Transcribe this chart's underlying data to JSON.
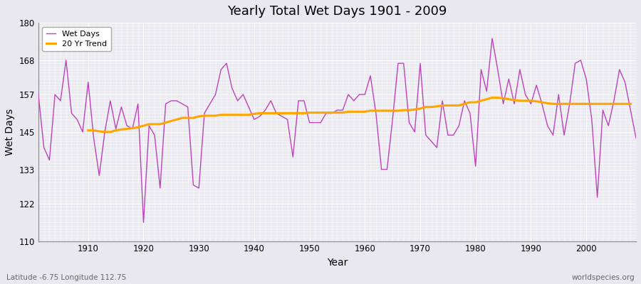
{
  "title": "Yearly Total Wet Days 1901 - 2009",
  "xlabel": "Year",
  "ylabel": "Wet Days",
  "footnote_left": "Latitude -6.75 Longitude 112.75",
  "footnote_right": "worldspecies.org",
  "ylim": [
    110,
    180
  ],
  "yticks": [
    110,
    122,
    133,
    145,
    157,
    168,
    180
  ],
  "xlim": [
    1901,
    2009
  ],
  "wet_days_color": "#BB44BB",
  "trend_color": "#FFA500",
  "background_color": "#E8E8EE",
  "plot_bg_color": "#EAEAF0",
  "grid_color": "#FFFFFF",
  "legend_label_wet": "Wet Days",
  "legend_label_trend": "20 Yr Trend",
  "years": [
    1901,
    1902,
    1903,
    1904,
    1905,
    1906,
    1907,
    1908,
    1909,
    1910,
    1911,
    1912,
    1913,
    1914,
    1915,
    1916,
    1917,
    1918,
    1919,
    1920,
    1921,
    1922,
    1923,
    1924,
    1925,
    1926,
    1927,
    1928,
    1929,
    1930,
    1931,
    1932,
    1933,
    1934,
    1935,
    1936,
    1937,
    1938,
    1939,
    1940,
    1941,
    1942,
    1943,
    1944,
    1945,
    1946,
    1947,
    1948,
    1949,
    1950,
    1951,
    1952,
    1953,
    1954,
    1955,
    1956,
    1957,
    1958,
    1959,
    1960,
    1961,
    1962,
    1963,
    1964,
    1965,
    1966,
    1967,
    1968,
    1969,
    1970,
    1971,
    1972,
    1973,
    1974,
    1975,
    1976,
    1977,
    1978,
    1979,
    1980,
    1981,
    1982,
    1983,
    1984,
    1985,
    1986,
    1987,
    1988,
    1989,
    1990,
    1991,
    1992,
    1993,
    1994,
    1995,
    1996,
    1997,
    1998,
    1999,
    2000,
    2001,
    2002,
    2003,
    2004,
    2005,
    2006,
    2007,
    2008,
    2009
  ],
  "wet_days": [
    157,
    140,
    136,
    157,
    155,
    168,
    151,
    149,
    145,
    161,
    143,
    131,
    145,
    155,
    146,
    153,
    147,
    146,
    154,
    116,
    147,
    144,
    127,
    154,
    155,
    155,
    154,
    153,
    128,
    127,
    151,
    154,
    157,
    165,
    167,
    159,
    155,
    157,
    153,
    149,
    150,
    152,
    155,
    151,
    150,
    149,
    137,
    155,
    155,
    148,
    148,
    148,
    151,
    151,
    152,
    152,
    157,
    155,
    157,
    157,
    163,
    151,
    133,
    133,
    149,
    167,
    167,
    148,
    145,
    167,
    144,
    142,
    140,
    155,
    144,
    144,
    147,
    155,
    151,
    134,
    165,
    158,
    175,
    165,
    154,
    162,
    154,
    165,
    157,
    154,
    160,
    154,
    147,
    144,
    157,
    144,
    154,
    167,
    168,
    162,
    149,
    124,
    152,
    147,
    155,
    165,
    161,
    152,
    143
  ],
  "trend_years": [
    1901,
    1902,
    1903,
    1904,
    1905,
    1906,
    1907,
    1908,
    1909,
    1910,
    1911,
    1912,
    1913,
    1914,
    1915,
    1916,
    1917,
    1918,
    1919,
    1920,
    1921,
    1922,
    1923,
    1924,
    1925,
    1926,
    1927,
    1928,
    1929,
    1930,
    1931,
    1932,
    1933,
    1934,
    1935,
    1936,
    1937,
    1938,
    1939,
    1940,
    1941,
    1942,
    1943,
    1944,
    1945,
    1946,
    1947,
    1948,
    1949,
    1950,
    1951,
    1952,
    1953,
    1954,
    1955,
    1956,
    1957,
    1958,
    1959,
    1960,
    1961,
    1962,
    1963,
    1964,
    1965,
    1966,
    1967,
    1968,
    1969,
    1970,
    1971,
    1972,
    1973,
    1974,
    1975,
    1976,
    1977,
    1978,
    1979,
    1980,
    1981,
    1982,
    1983,
    1984,
    1985,
    1986,
    1987,
    1988,
    1989,
    1990,
    1991,
    1992,
    1993,
    1994,
    1995,
    1996,
    1997,
    1998,
    1999,
    2000,
    2001,
    2002,
    2003,
    2004,
    2005,
    2006,
    2007,
    2008,
    2009
  ],
  "trend_values": [
    null,
    null,
    null,
    null,
    null,
    null,
    null,
    null,
    null,
    145.5,
    145.5,
    145.2,
    145.0,
    145.0,
    145.5,
    145.8,
    146.0,
    146.2,
    146.5,
    147.0,
    147.5,
    147.5,
    147.5,
    148.0,
    148.5,
    149.0,
    149.5,
    149.5,
    149.5,
    150.0,
    150.2,
    150.2,
    150.2,
    150.5,
    150.5,
    150.5,
    150.5,
    150.5,
    150.5,
    150.8,
    151.0,
    151.0,
    151.0,
    151.0,
    151.0,
    151.0,
    151.0,
    151.0,
    151.0,
    151.2,
    151.2,
    151.2,
    151.2,
    151.2,
    151.2,
    151.2,
    151.5,
    151.5,
    151.5,
    151.5,
    151.8,
    151.8,
    151.8,
    151.8,
    151.8,
    151.8,
    152.0,
    152.0,
    152.2,
    152.5,
    153.0,
    153.0,
    153.2,
    153.5,
    153.5,
    153.5,
    153.5,
    154.0,
    154.5,
    154.5,
    155.0,
    155.5,
    156.0,
    156.0,
    155.8,
    155.5,
    155.2,
    155.0,
    155.0,
    155.0,
    154.8,
    154.5,
    154.2,
    154.0,
    154.0,
    154.0,
    154.0,
    154.0,
    154.0,
    154.0,
    154.0,
    154.0,
    154.0,
    154.0,
    154.0,
    154.0,
    154.0,
    154.0
  ]
}
